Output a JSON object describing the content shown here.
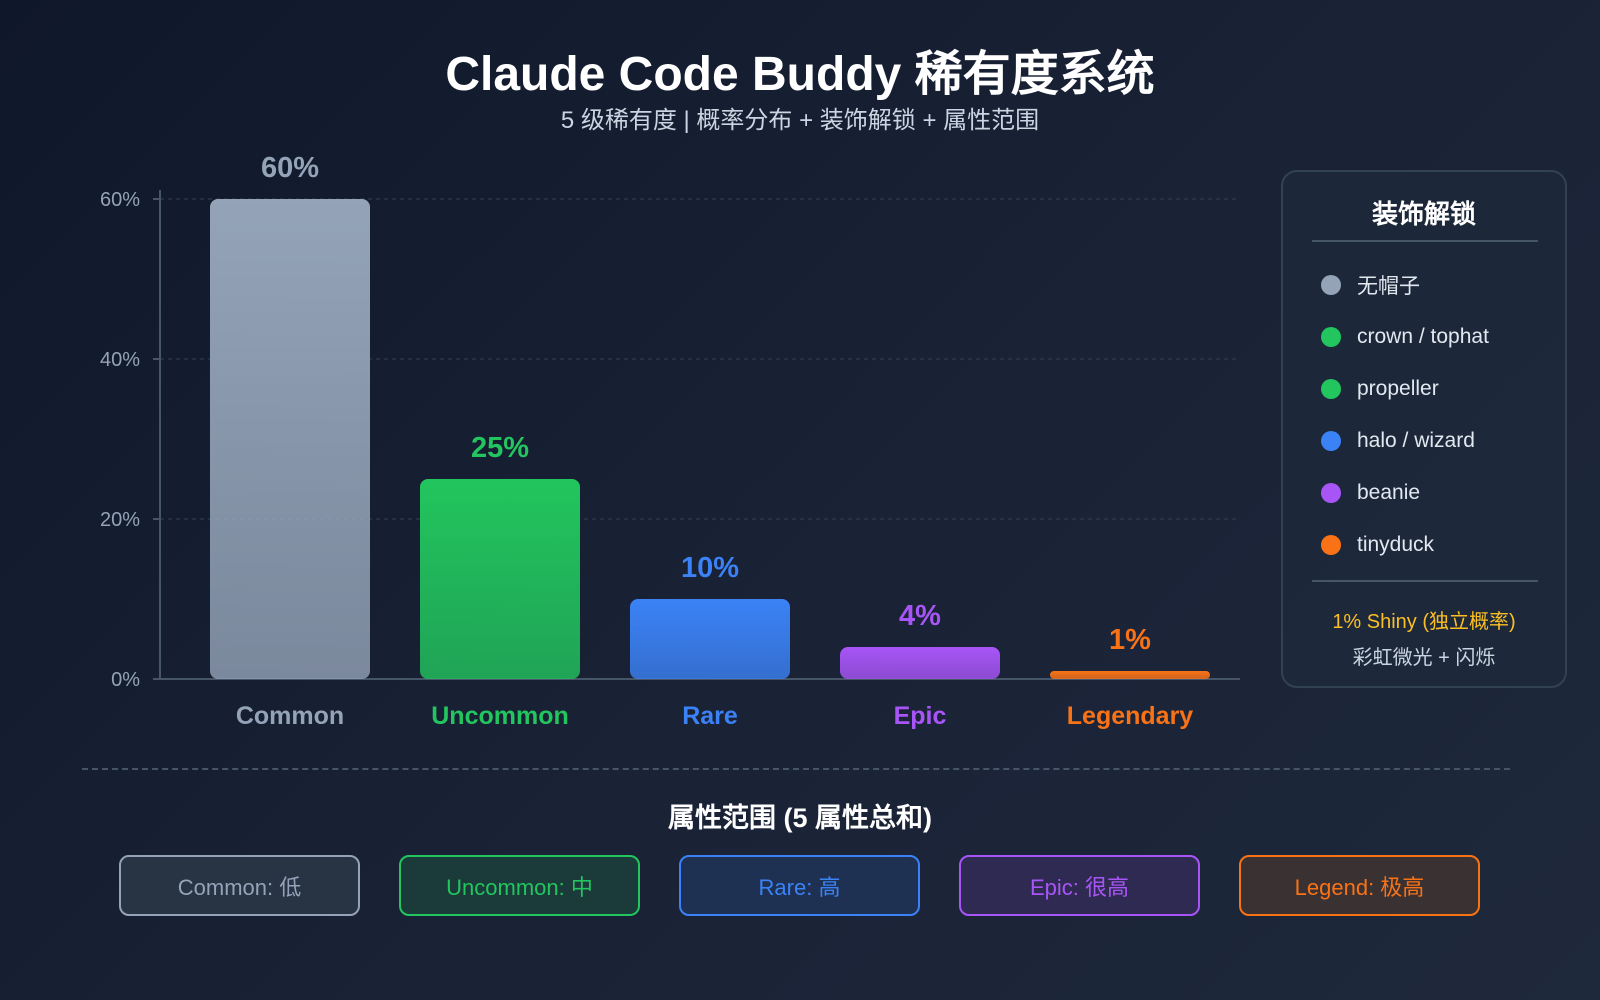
{
  "header": {
    "title": "Claude Code Buddy 稀有度系统",
    "subtitle": "5 级稀有度 | 概率分布 + 装饰解锁 + 属性范围"
  },
  "chart_data": {
    "type": "bar",
    "categories": [
      "Common",
      "Uncommon",
      "Rare",
      "Epic",
      "Legendary"
    ],
    "values": [
      60,
      25,
      10,
      4,
      1
    ],
    "value_labels": [
      "60%",
      "25%",
      "10%",
      "4%",
      "1%"
    ],
    "colors": [
      "#94a3b8",
      "#22c55e",
      "#3b82f6",
      "#a855f7",
      "#f97316"
    ],
    "ylim": [
      0,
      60
    ],
    "yticks": [
      0,
      20,
      40,
      60
    ],
    "ytick_labels": [
      "0%",
      "20%",
      "40%",
      "60%"
    ],
    "grid": "dashed horizontal",
    "xlabel": "",
    "ylabel": ""
  },
  "legend_panel": {
    "title": "装饰解锁",
    "items": [
      {
        "label": "无帽子",
        "color": "#94a3b8"
      },
      {
        "label": "crown / tophat",
        "color": "#22c55e"
      },
      {
        "label": "propeller",
        "color": "#22c55e"
      },
      {
        "label": "halo / wizard",
        "color": "#3b82f6"
      },
      {
        "label": "beanie",
        "color": "#a855f7"
      },
      {
        "label": "tinyduck",
        "color": "#f97316"
      }
    ],
    "shiny": "1% Shiny (独立概率)",
    "shiny_desc": "彩虹微光 + 闪烁",
    "shiny_color": "#fbbf24"
  },
  "attributes": {
    "title": "属性范围 (5 属性总和)",
    "items": [
      {
        "label": "Common: 低",
        "color": "#94a3b8",
        "bg": "#283444"
      },
      {
        "label": "Uncommon: 中",
        "color": "#22c55e",
        "bg": "#1b3a3a"
      },
      {
        "label": "Rare: 高",
        "color": "#3b82f6",
        "bg": "#1e3153"
      },
      {
        "label": "Epic: 很高",
        "color": "#a855f7",
        "bg": "#2f2a52"
      },
      {
        "label": "Legend: 极高",
        "color": "#f97316",
        "bg": "#3a3132"
      }
    ]
  }
}
